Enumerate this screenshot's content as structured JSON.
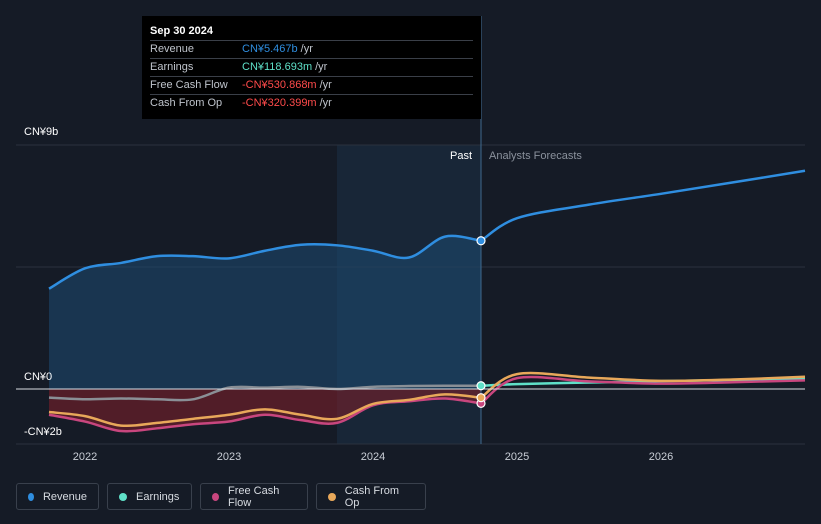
{
  "tooltip": {
    "date": "Sep 30 2024",
    "rows": [
      {
        "label": "Revenue",
        "value": "CN¥5.467b",
        "unit": "/yr",
        "color": "#2f8ee0"
      },
      {
        "label": "Earnings",
        "value": "CN¥118.693m",
        "unit": "/yr",
        "color": "#5fe0c8"
      },
      {
        "label": "Free Cash Flow",
        "value": "-CN¥530.868m",
        "unit": "/yr",
        "color": "#ff4b4b"
      },
      {
        "label": "Cash From Op",
        "value": "-CN¥320.399m",
        "unit": "/yr",
        "color": "#ff4b4b"
      }
    ]
  },
  "region_labels": {
    "past": "Past",
    "forecast": "Analysts Forecasts"
  },
  "colors": {
    "revenue": "#2f8ee0",
    "earnings": "#5fe0c8",
    "free_cash_flow": "#c8467e",
    "cash_from_op": "#e8a85a",
    "background": "#151b26"
  },
  "legend": [
    {
      "label": "Revenue",
      "color": "#2f8ee0"
    },
    {
      "label": "Earnings",
      "color": "#5fe0c8"
    },
    {
      "label": "Free Cash Flow",
      "color": "#c8467e"
    },
    {
      "label": "Cash From Op",
      "color": "#e8a85a"
    }
  ],
  "chart_data": {
    "type": "line",
    "y_axis_labels": [
      "CN¥9b",
      "CN¥0",
      "-CN¥2b"
    ],
    "ylim": [
      -2,
      9
    ],
    "y_unit": "CN¥ billions",
    "x_tick_labels": [
      "2022",
      "2023",
      "2024",
      "2025",
      "2026"
    ],
    "xlim": [
      2021.7,
      2027.0
    ],
    "past_end": 2024.75,
    "series": [
      {
        "name": "Revenue",
        "x": [
          2021.75,
          2022.0,
          2022.25,
          2022.5,
          2022.75,
          2023.0,
          2023.25,
          2023.5,
          2023.75,
          2024.0,
          2024.25,
          2024.5,
          2024.75,
          2025.0,
          2025.5,
          2026.0,
          2026.5,
          2027.0
        ],
        "values": [
          3.7,
          4.45,
          4.65,
          4.9,
          4.9,
          4.82,
          5.1,
          5.32,
          5.3,
          5.1,
          4.85,
          5.62,
          5.467,
          6.3,
          6.8,
          7.2,
          7.62,
          8.05
        ]
      },
      {
        "name": "Earnings",
        "x": [
          2021.75,
          2022.0,
          2022.25,
          2022.5,
          2022.75,
          2023.0,
          2023.25,
          2023.5,
          2023.75,
          2024.0,
          2024.25,
          2024.5,
          2024.75,
          2025.0,
          2025.5,
          2026.0,
          2026.5,
          2027.0
        ],
        "values": [
          -0.32,
          -0.38,
          -0.35,
          -0.38,
          -0.38,
          0.05,
          0.05,
          0.08,
          0.0,
          0.08,
          0.11,
          0.12,
          0.119,
          0.18,
          0.24,
          0.29,
          0.33,
          0.37
        ]
      },
      {
        "name": "Free Cash Flow",
        "x": [
          2021.75,
          2022.0,
          2022.25,
          2022.5,
          2022.75,
          2023.0,
          2023.25,
          2023.5,
          2023.75,
          2024.0,
          2024.25,
          2024.5,
          2024.75,
          2025.0,
          2025.5,
          2026.0,
          2026.5,
          2027.0
        ],
        "values": [
          -0.95,
          -1.2,
          -1.55,
          -1.45,
          -1.3,
          -1.2,
          -0.95,
          -1.15,
          -1.25,
          -0.6,
          -0.45,
          -0.35,
          -0.531,
          0.4,
          0.28,
          0.2,
          0.25,
          0.32
        ]
      },
      {
        "name": "Cash From Op",
        "x": [
          2021.75,
          2022.0,
          2022.25,
          2022.5,
          2022.75,
          2023.0,
          2023.25,
          2023.5,
          2023.75,
          2024.0,
          2024.25,
          2024.5,
          2024.75,
          2025.0,
          2025.5,
          2026.0,
          2026.5,
          2027.0
        ],
        "values": [
          -0.85,
          -1.0,
          -1.35,
          -1.25,
          -1.1,
          -0.95,
          -0.75,
          -0.95,
          -1.1,
          -0.55,
          -0.4,
          -0.2,
          -0.32,
          0.55,
          0.42,
          0.3,
          0.35,
          0.45
        ]
      }
    ]
  }
}
